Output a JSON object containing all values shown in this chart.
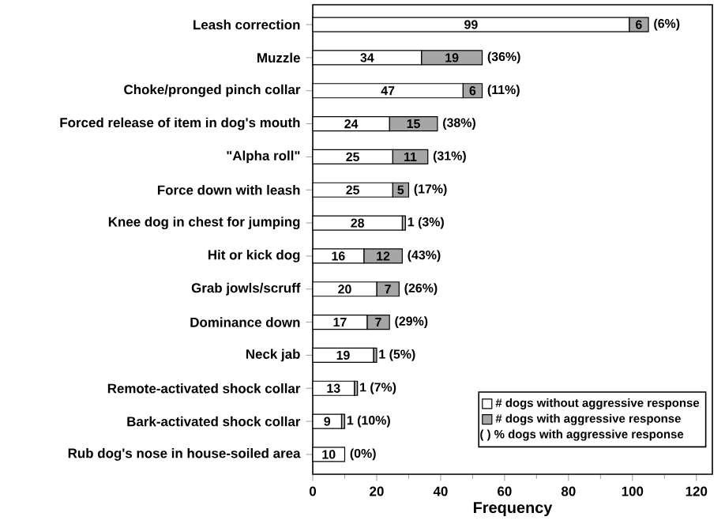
{
  "chart_data": {
    "type": "bar",
    "orientation": "horizontal",
    "stacked": true,
    "xlabel": "Frequency",
    "categories": [
      "Leash correction",
      "Muzzle",
      "Choke/pronged pinch collar",
      "Forced release of item in dog's mouth",
      "\"Alpha roll\"",
      "Force down with leash",
      "Knee dog in chest for jumping",
      "Hit or kick dog",
      "Grab jowls/scruff",
      "Dominance down",
      "Neck jab",
      "Remote-activated shock collar",
      "Bark-activated shock collar",
      "Rub dog's nose in house-soiled area"
    ],
    "series": [
      {
        "name": "# dogs without aggressive response",
        "color": "#ffffff",
        "values": [
          99,
          34,
          47,
          24,
          25,
          25,
          28,
          16,
          20,
          17,
          19,
          13,
          9,
          10
        ],
        "value_labels": [
          "99",
          "34",
          "47",
          "24",
          "25",
          "25",
          "28",
          "16",
          "20",
          "17",
          "19",
          "13",
          "9",
          "10"
        ]
      },
      {
        "name": "# dogs with aggressive response",
        "color": "#a6a6a6",
        "values": [
          6,
          19,
          6,
          15,
          11,
          5,
          1,
          12,
          7,
          7,
          1,
          1,
          1,
          0
        ],
        "value_labels": [
          "6",
          "19",
          "6",
          "15",
          "11",
          "5",
          "1",
          "12",
          "7",
          "7",
          "1",
          "1",
          "1",
          null
        ]
      }
    ],
    "annotations": [
      "( ) % dogs with aggressive response",
      {
        "text": "(6%)",
        "x": 105,
        "y": "Leash correction"
      },
      {
        "text": "(36%)",
        "x": 53,
        "y": "Muzzle"
      },
      {
        "text": "(11%)",
        "x": 53,
        "y": "Choke/pronged pinch collar"
      },
      {
        "text": "(38%)",
        "x": 39,
        "y": "Forced release of item in dog's mouth"
      },
      {
        "text": "(31%)",
        "x": 36,
        "y": "\"Alpha roll\""
      },
      {
        "text": "(17%)",
        "x": 30,
        "y": "Force down with leash"
      },
      {
        "text": "(3%)",
        "x": 29,
        "y": "Knee dog in chest for jumping"
      },
      {
        "text": "(43%)",
        "x": 28,
        "y": "Hit or kick dog"
      },
      {
        "text": "(26%)",
        "x": 27,
        "y": "Grab jowls/scruff"
      },
      {
        "text": "(29%)",
        "x": 24,
        "y": "Dominance down"
      },
      {
        "text": "(5%)",
        "x": 20,
        "y": "Neck jab"
      },
      {
        "text": "(7%)",
        "x": 14,
        "y": "Remote-activated shock collar"
      },
      {
        "text": "(10%)",
        "x": 10,
        "y": "Bark-activated shock collar"
      },
      {
        "text": "(0%)",
        "x": 10,
        "y": "Rub dog's nose in house-soiled area"
      }
    ],
    "xlim": [
      0,
      125
    ],
    "xticks": [
      0,
      20,
      40,
      60,
      80,
      100,
      120
    ],
    "legend": "bottom right",
    "grid": false
  }
}
